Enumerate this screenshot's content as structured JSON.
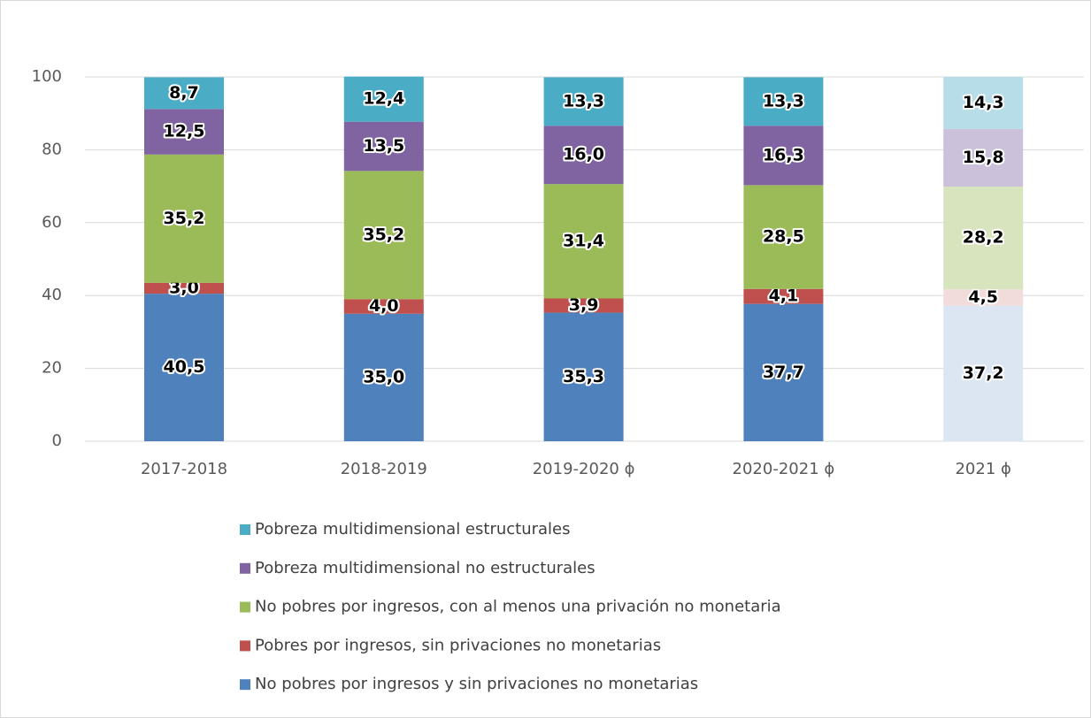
{
  "chart_data": {
    "type": "stacked_bar",
    "categories": [
      "2017-2018",
      "2018-2019",
      "2019-2020 ϕ",
      "2020-2021 ϕ",
      "2021 ϕ"
    ],
    "series": [
      {
        "name": "No pobres por ingresos y sin privaciones no monetarias",
        "color": "#4f81bd",
        "colors": [
          "#4f81bd",
          "#4f81bd",
          "#4f81bd",
          "#4f81bd",
          "#dce6f2"
        ],
        "values": [
          40.5,
          35.0,
          35.3,
          37.7,
          37.2
        ],
        "value_labels": [
          "40,5",
          "35,0",
          "35,3",
          "37,7",
          "37,2"
        ]
      },
      {
        "name": "Pobres por ingresos, sin privaciones no monetarias",
        "color": "#c0504d",
        "colors": [
          "#c0504d",
          "#c0504d",
          "#c0504d",
          "#c0504d",
          "#f2dcdb"
        ],
        "values": [
          3.0,
          4.0,
          3.9,
          4.1,
          4.5
        ],
        "value_labels": [
          "3,0",
          "4,0",
          "3,9",
          "4,1",
          "4,5"
        ]
      },
      {
        "name": "No pobres por ingresos, con al menos una privación no monetaria",
        "color": "#9bbb59",
        "colors": [
          "#9bbb59",
          "#9bbb59",
          "#9bbb59",
          "#9bbb59",
          "#d7e4bd"
        ],
        "values": [
          35.2,
          35.2,
          31.4,
          28.5,
          28.2
        ],
        "value_labels": [
          "35,2",
          "35,2",
          "31,4",
          "28,5",
          "28,2"
        ]
      },
      {
        "name": "Pobreza multidimensional no estructurales",
        "color": "#8064a2",
        "colors": [
          "#8064a2",
          "#8064a2",
          "#8064a2",
          "#8064a2",
          "#ccc1da"
        ],
        "values": [
          12.5,
          13.5,
          16.0,
          16.3,
          15.8
        ],
        "value_labels": [
          "12,5",
          "13,5",
          "16,0",
          "16,3",
          "15,8"
        ]
      },
      {
        "name": "Pobreza multidimensional estructurales",
        "color": "#4bacc6",
        "colors": [
          "#4bacc6",
          "#4bacc6",
          "#4bacc6",
          "#4bacc6",
          "#b7dee8"
        ],
        "values": [
          8.7,
          12.4,
          13.3,
          13.3,
          14.3
        ],
        "value_labels": [
          "8,7",
          "12,4",
          "13,3",
          "13,3",
          "14,3"
        ]
      }
    ],
    "ylim": [
      0,
      100
    ],
    "yticks": [
      0,
      20,
      40,
      60,
      80,
      100
    ],
    "grid": true,
    "legend": "bottom"
  }
}
